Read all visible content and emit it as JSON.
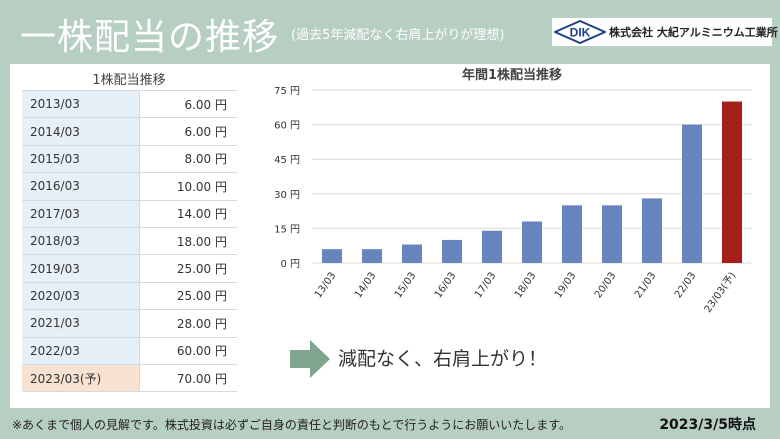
{
  "header": {
    "title": "一株配当の推移",
    "subtitle": "(過去5年減配なく右肩上がりが理想)",
    "logo_text": "DIK",
    "company": "株式会社 大紀アルミニウム工業所"
  },
  "table": {
    "title": "1株配当推移",
    "rows": [
      {
        "year": "2013/03",
        "value": "6.00 円"
      },
      {
        "year": "2014/03",
        "value": "6.00 円"
      },
      {
        "year": "2015/03",
        "value": "8.00 円"
      },
      {
        "year": "2016/03",
        "value": "10.00 円"
      },
      {
        "year": "2017/03",
        "value": "14.00 円"
      },
      {
        "year": "2018/03",
        "value": "18.00 円"
      },
      {
        "year": "2019/03",
        "value": "25.00 円"
      },
      {
        "year": "2020/03",
        "value": "25.00 円"
      },
      {
        "year": "2021/03",
        "value": "28.00 円"
      },
      {
        "year": "2022/03",
        "value": "60.00 円"
      },
      {
        "year": "2023/03(予)",
        "value": "70.00 円"
      }
    ]
  },
  "chart_data": {
    "type": "bar",
    "title": "年間1株配当推移",
    "categories": [
      "13/03",
      "14/03",
      "15/03",
      "16/03",
      "17/03",
      "18/03",
      "19/03",
      "20/03",
      "21/03",
      "22/03",
      "23/03(予)"
    ],
    "values": [
      6,
      6,
      8,
      10,
      14,
      18,
      25,
      25,
      28,
      60,
      70
    ],
    "ylim": [
      0,
      75
    ],
    "yticks": [
      0,
      15,
      30,
      45,
      60,
      75
    ],
    "ytick_suffix": "円",
    "grid": true,
    "colors": {
      "actual": "#6884bf",
      "forecast": "#a51f1a"
    }
  },
  "message": "減配なく、右肩上がり！",
  "footer": {
    "disclaimer": "※あくまで個人の見解です。株式投資は必ずご自身の責任と判断のもとで行うようにお願いいたします。",
    "date": "2023/3/5時点"
  }
}
